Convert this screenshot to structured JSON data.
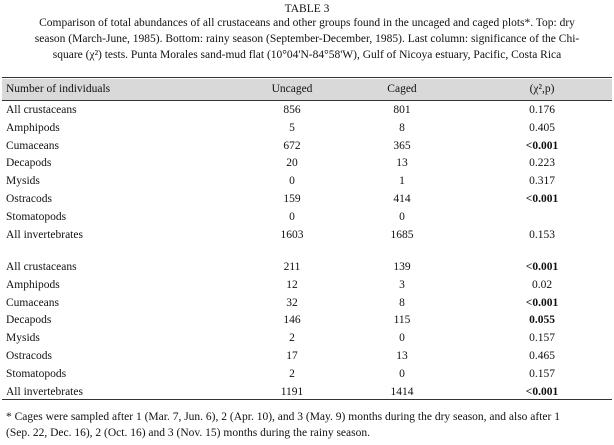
{
  "header": {
    "title": "TABLE 3",
    "caption": [
      "Comparison of total abundances of all crustaceans and other groups found in the uncaged and caged plots*. Top: dry",
      "season (March-June, 1985). Bottom: rainy season (September-December, 1985). Last column: significance of the Chi-",
      "square (χ²) tests. Punta Morales sand-mud flat (10°04'N-84°58'W), Gulf of Nicoya estuary, Pacific, Costa Rica"
    ]
  },
  "table": {
    "columns": [
      "Number of individuals",
      "Uncaged",
      "Caged",
      "(χ²,p)"
    ],
    "dry": [
      [
        "All crustaceans",
        "856",
        "801",
        "0.176"
      ],
      [
        "Amphipods",
        "5",
        "8",
        "0.405"
      ],
      [
        "Cumaceans",
        "672",
        "365",
        "<0.001"
      ],
      [
        "Decapods",
        "20",
        "13",
        "0.223"
      ],
      [
        "Mysids",
        "0",
        "1",
        "0.317"
      ],
      [
        "Ostracods",
        "159",
        "414",
        "<0.001"
      ],
      [
        "Stomatopods",
        "0",
        "0",
        ""
      ],
      [
        "All invertebrates",
        "1603",
        "1685",
        "0.153"
      ]
    ],
    "rainy": [
      [
        "All crustaceans",
        "211",
        "139",
        "<0.001"
      ],
      [
        "Amphipods",
        "12",
        "3",
        "0.02"
      ],
      [
        "Cumaceans",
        "32",
        "8",
        "<0.001"
      ],
      [
        "Decapods",
        "146",
        "115",
        "0.055"
      ],
      [
        "Mysids",
        "2",
        "0",
        "0.157"
      ],
      [
        "Ostracods",
        "17",
        "13",
        "0.465"
      ],
      [
        "Stomatopods",
        "2",
        "0",
        "0.157"
      ],
      [
        "All invertebrates",
        "1191",
        "1414",
        "<0.001"
      ]
    ]
  },
  "footnote": [
    "* Cages were sampled after 1 (Mar. 7, Jun. 6), 2 (Apr. 10), and 3 (May. 9) months during the dry season, and also after 1",
    "(Sep. 22, Dec. 16), 2 (Oct. 16) and 3 (Nov. 15) months during the rainy season."
  ]
}
